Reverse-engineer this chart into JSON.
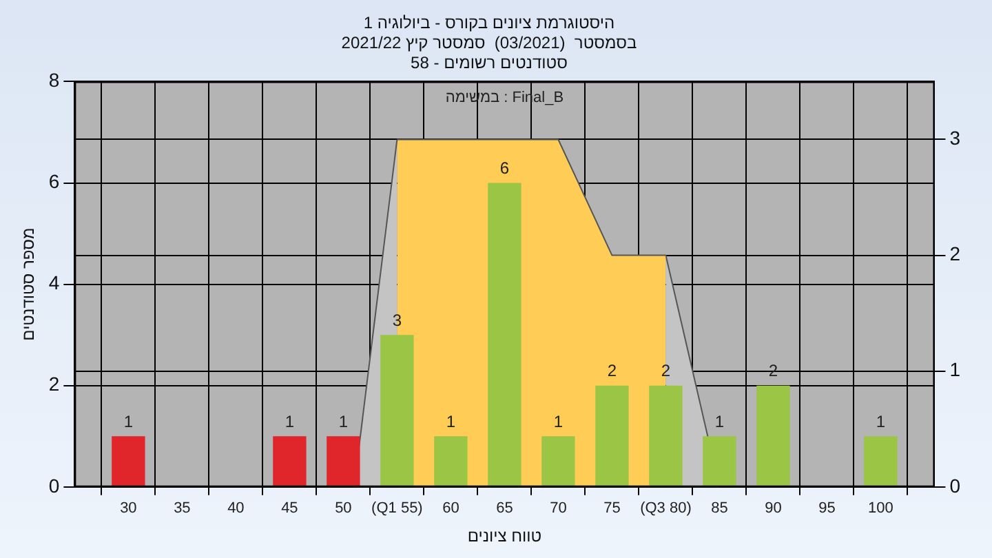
{
  "chart_data": {
    "type": "bar",
    "title": [
      "היסטוגרמת ציונים בקורס - ביולוגיה 1",
      "בסמסטר  (03/2021)  סמסטר קיץ 2021/22",
      "סטודנטים רשומים - 58"
    ],
    "xlabel": "טווח ציונים",
    "ylabel": "מספר סטודנטים",
    "annotations": [
      "במשימה : Final_B"
    ],
    "xlim": [
      25,
      105
    ],
    "xticks": [
      30,
      35,
      40,
      45,
      50,
      {
        "value": 55,
        "label": "(Q1 55)"
      },
      60,
      65,
      70,
      75,
      {
        "value": 80,
        "label": "(Q3 80)"
      },
      85,
      90,
      95,
      100
    ],
    "ylim": [
      0,
      8
    ],
    "yticks": [
      0,
      2,
      4,
      6,
      8
    ],
    "y2lim": [
      0,
      3.5
    ],
    "y2ticks": [
      0,
      1,
      2,
      3
    ],
    "grid": true,
    "legend": false,
    "series": [
      {
        "x": [
          30,
          45,
          50,
          55,
          60,
          65,
          70,
          75,
          80,
          85,
          90,
          100
        ],
        "values": [
          1,
          1,
          1,
          3,
          1,
          6,
          1,
          2,
          2,
          1,
          2,
          1
        ],
        "value_labels": [
          "1",
          "1",
          "1",
          "3",
          "1",
          "6",
          "1",
          "2",
          "2",
          "1",
          "2",
          "1"
        ],
        "colors": [
          "#e0262b",
          "#e0262b",
          "#e0262b",
          "#9bc545",
          "#9bc545",
          "#9bc545",
          "#9bc545",
          "#9bc545",
          "#9bc545",
          "#9bc545",
          "#9bc545",
          "#9bc545"
        ]
      },
      {
        "type": "area",
        "axis": "y2",
        "x": [
          51,
          55
        ],
        "values": [
          0,
          3
        ],
        "color": "#c4c4c4"
      },
      {
        "type": "area",
        "axis": "y2",
        "x": [
          55,
          70,
          75,
          80
        ],
        "values": [
          3,
          3,
          2,
          2
        ],
        "color": "#ffcc55"
      },
      {
        "type": "area",
        "axis": "y2",
        "x": [
          80,
          85
        ],
        "values": [
          2,
          0
        ],
        "color": "#c4c4c4"
      }
    ]
  }
}
